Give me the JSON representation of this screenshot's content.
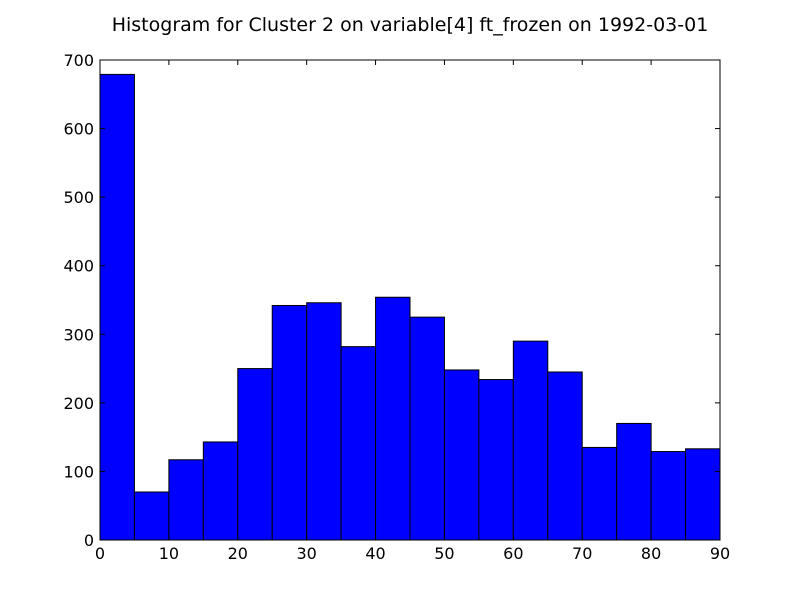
{
  "chart_data": {
    "type": "bar",
    "title": "Histogram for Cluster 2 on variable[4] ft_frozen on 1992-03-01",
    "xlabel": "",
    "ylabel": "",
    "bin_edges": [
      0,
      5,
      10,
      15,
      20,
      25,
      30,
      35,
      40,
      45,
      50,
      55,
      60,
      65,
      70,
      75,
      80,
      85,
      90
    ],
    "values": [
      679,
      70,
      117,
      143,
      250,
      342,
      346,
      282,
      354,
      325,
      248,
      234,
      290,
      245,
      135,
      170,
      129,
      133
    ],
    "xlim": [
      0,
      90
    ],
    "ylim": [
      0,
      700
    ],
    "x_ticks": [
      0,
      10,
      20,
      30,
      40,
      50,
      60,
      70,
      80,
      90
    ],
    "y_ticks": [
      0,
      100,
      200,
      300,
      400,
      500,
      600,
      700
    ],
    "bar_color": "#0000ff",
    "grid": false,
    "legend": "none"
  }
}
